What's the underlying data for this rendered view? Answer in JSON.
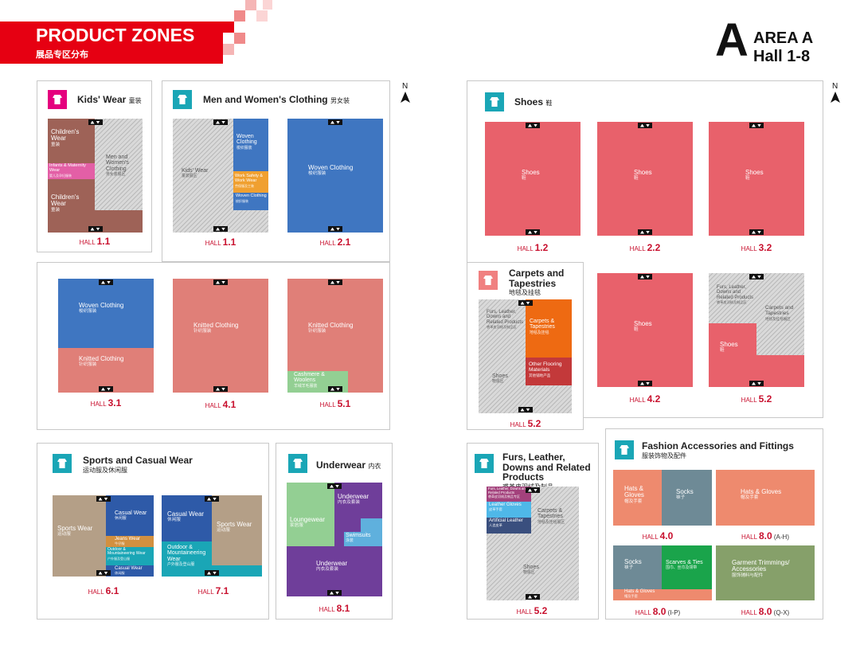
{
  "header": {
    "title": "PRODUCT ZONES",
    "subtitle": "展品专区分布",
    "area_letter": "A",
    "area": "AREA A",
    "halls": "Hall 1-8"
  },
  "compass": "N",
  "sections": [
    {
      "title": "Kids' Wear",
      "title_cn": "童装",
      "halls": [
        {
          "label": "HALL",
          "number": "1.1",
          "zones": [
            {
              "en": "Children's Wear",
              "cn": "童装"
            },
            {
              "en": "Infants & Maternity Wear",
              "cn": "婴儿及孕妇服装"
            },
            {
              "en": "Children's Wear",
              "cn": "童装"
            },
            {
              "en": "Men and Women's Clothing",
              "cn": "男女装展区"
            }
          ]
        }
      ]
    },
    {
      "title": "Men and Women's Clothing",
      "title_cn": "男女装",
      "halls": [
        {
          "label": "HALL",
          "number": "1.1",
          "zones": [
            {
              "en": "Kids' Wear",
              "cn": "童装展区"
            },
            {
              "en": "Woven Clothing",
              "cn": "梭织服装"
            },
            {
              "en": "Work Safety & Work Wear",
              "cn": "劳保服及工装"
            },
            {
              "en": "Woven Clothing",
              "cn": "梭织服装"
            }
          ]
        },
        {
          "label": "HALL",
          "number": "2.1",
          "zones": [
            {
              "en": "Woven Clothing",
              "cn": "梭织服装"
            }
          ]
        },
        {
          "label": "HALL",
          "number": "3.1",
          "zones": [
            {
              "en": "Woven Clothing",
              "cn": "梭织服装"
            },
            {
              "en": "Knitted Clothing",
              "cn": "针织服装"
            }
          ]
        },
        {
          "label": "HALL",
          "number": "4.1",
          "zones": [
            {
              "en": "Knitted Clothing",
              "cn": "针织服装"
            }
          ]
        },
        {
          "label": "HALL",
          "number": "5.1",
          "zones": [
            {
              "en": "Knitted Clothing",
              "cn": "针织服装"
            },
            {
              "en": "Cashmere & Woolens",
              "cn": "羊绒羊毛服装"
            }
          ]
        }
      ]
    },
    {
      "title": "Sports and Casual Wear",
      "title_cn": "运动服及休闲服",
      "halls": [
        {
          "label": "HALL",
          "number": "6.1",
          "zones": [
            {
              "en": "Sports Wear",
              "cn": "运动服"
            },
            {
              "en": "Casual Wear",
              "cn": "休闲服"
            },
            {
              "en": "Jeans Wear",
              "cn": "牛仔服"
            },
            {
              "en": "Outdoor & Mountaineering Wear",
              "cn": "户外服及登山服"
            },
            {
              "en": "Casual Wear",
              "cn": "休闲服"
            }
          ]
        },
        {
          "label": "HALL",
          "number": "7.1",
          "zones": [
            {
              "en": "Casual Wear",
              "cn": "休闲服"
            },
            {
              "en": "Outdoor & Mountaineering Wear",
              "cn": "户外服及登山服"
            },
            {
              "en": "Sports Wear",
              "cn": "运动服"
            }
          ]
        }
      ]
    },
    {
      "title": "Underwear",
      "title_cn": "内衣",
      "halls": [
        {
          "label": "HALL",
          "number": "8.1",
          "zones": [
            {
              "en": "Underwear",
              "cn": "内衣及套装"
            },
            {
              "en": "Loungewear",
              "cn": "家居服"
            },
            {
              "en": "Swimsuits",
              "cn": "泳装"
            },
            {
              "en": "Underwear",
              "cn": "内衣及套装"
            }
          ]
        }
      ]
    },
    {
      "title": "Shoes",
      "title_cn": "鞋",
      "halls": [
        {
          "label": "HALL",
          "number": "1.2",
          "zones": [
            {
              "en": "Shoes",
              "cn": "鞋"
            }
          ]
        },
        {
          "label": "HALL",
          "number": "2.2",
          "zones": [
            {
              "en": "Shoes",
              "cn": "鞋"
            }
          ]
        },
        {
          "label": "HALL",
          "number": "3.2",
          "zones": [
            {
              "en": "Shoes",
              "cn": "鞋"
            }
          ]
        },
        {
          "label": "HALL",
          "number": "4.2",
          "zones": [
            {
              "en": "Shoes",
              "cn": "鞋"
            }
          ]
        },
        {
          "label": "HALL",
          "number": "5.2",
          "zones": [
            {
              "en": "Furs, Leather, Downs and Related Products",
              "cn": "裘革皮羽绒及制品区"
            },
            {
              "en": "Carpets and Tapestries",
              "cn": "地毯及挂毯展区"
            },
            {
              "en": "Shoes",
              "cn": "鞋"
            }
          ]
        }
      ]
    },
    {
      "title": "Carpets and Tapestries",
      "title_cn": "地毯及挂毯",
      "halls": [
        {
          "label": "HALL",
          "number": "5.2",
          "zones": [
            {
              "en": "Furs, Leather, Downs and Related Products",
              "cn": "裘革皮羽绒及制品区"
            },
            {
              "en": "Shoes",
              "cn": "鞋展区"
            },
            {
              "en": "Carpets & Tapestries",
              "cn": "地毯及挂毯"
            },
            {
              "en": "Other Flooring Materials",
              "cn": "其他铺地产品"
            }
          ]
        }
      ]
    },
    {
      "title": "Furs, Leather, Downs and Related Products",
      "title_cn": "裘革皮羽绒及制品",
      "halls": [
        {
          "label": "HALL",
          "number": "5.2",
          "zones": [
            {
              "en": "Furs, Leather, Downs and Related Products",
              "cn": "裘革皮羽绒及制品专区"
            },
            {
              "en": "Leather Gloves",
              "cn": "皮革手套"
            },
            {
              "en": "Artificial Leather",
              "cn": "人造皮革"
            },
            {
              "en": "Carpets & Tapestries",
              "cn": "地毯及挂毯展区"
            },
            {
              "en": "Shoes",
              "cn": "鞋展区"
            }
          ]
        }
      ]
    },
    {
      "title": "Fashion Accessories and Fittings",
      "title_cn": "服装饰物及配件",
      "halls": [
        {
          "label": "HALL",
          "number": "4.0",
          "zones": [
            {
              "en": "Hats & Gloves",
              "cn": "帽及手套"
            },
            {
              "en": "Socks",
              "cn": "袜子"
            }
          ]
        },
        {
          "label": "HALL",
          "number": "8.0",
          "note": "(A-H)",
          "zones": [
            {
              "en": "Hats & Gloves",
              "cn": "帽及手套"
            }
          ]
        },
        {
          "label": "HALL",
          "number": "8.0",
          "note": "(I-P)",
          "zones": [
            {
              "en": "Socks",
              "cn": "袜子"
            },
            {
              "en": "Scarves & Ties",
              "cn": "围巾、丝巾及领带"
            },
            {
              "en": "Hats & Gloves",
              "cn": "帽及手套"
            }
          ]
        },
        {
          "label": "HALL",
          "number": "8.0",
          "note": "(Q-X)",
          "zones": [
            {
              "en": "Garment Trimmings/ Accessories",
              "cn": "服饰辅料与配件"
            }
          ]
        }
      ]
    }
  ]
}
